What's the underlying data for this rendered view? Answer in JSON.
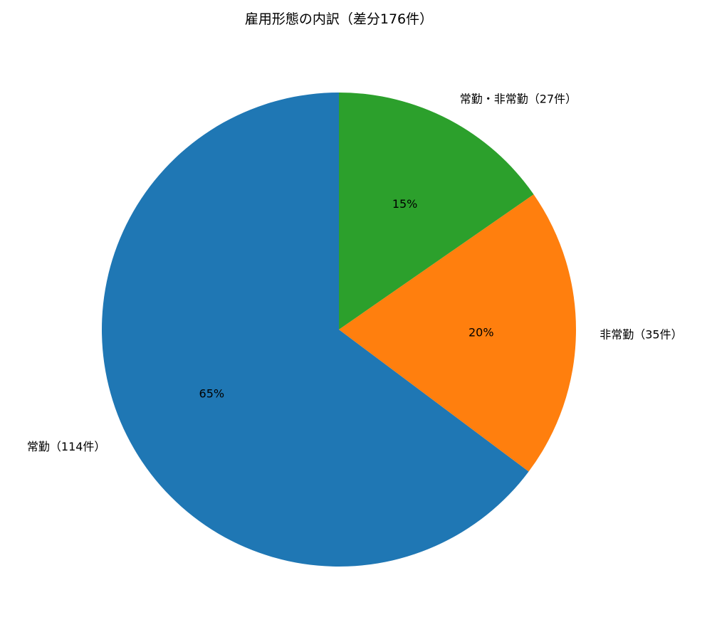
{
  "chart_data": {
    "type": "pie",
    "title": "雇用形態の内訳（差分176件）",
    "start_angle_deg": 90,
    "direction": "counterclockwise",
    "slices": [
      {
        "label": "常勤（114件）",
        "value": 114,
        "pct_label": "65%",
        "color": "#1f77b4"
      },
      {
        "label": "非常勤（35件）",
        "value": 35,
        "pct_label": "20%",
        "color": "#ff7f0e"
      },
      {
        "label": "常勤・非常勤（27件）",
        "value": 27,
        "pct_label": "15%",
        "color": "#2ca02c"
      }
    ]
  }
}
